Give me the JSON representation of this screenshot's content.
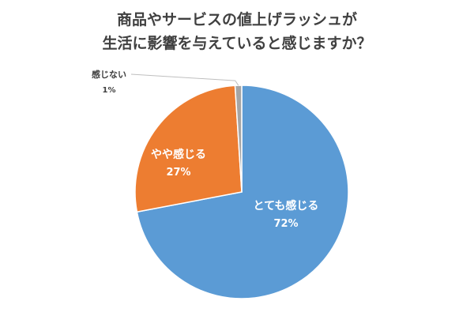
{
  "chart_data": {
    "type": "pie",
    "title_lines": [
      "商品やサービスの値上げラッシュが",
      "生活に影響を与えていると感じますか？"
    ],
    "slices": [
      {
        "label": "とても感じる",
        "value": 72,
        "value_text": "72%",
        "color": "#5B9BD5"
      },
      {
        "label": "やや感じる",
        "value": 27,
        "value_text": "27%",
        "color": "#ED7D31"
      },
      {
        "label": "感じない",
        "value": 1,
        "value_text": "1%",
        "color": "#A5A5A5"
      }
    ],
    "legend": "none"
  }
}
